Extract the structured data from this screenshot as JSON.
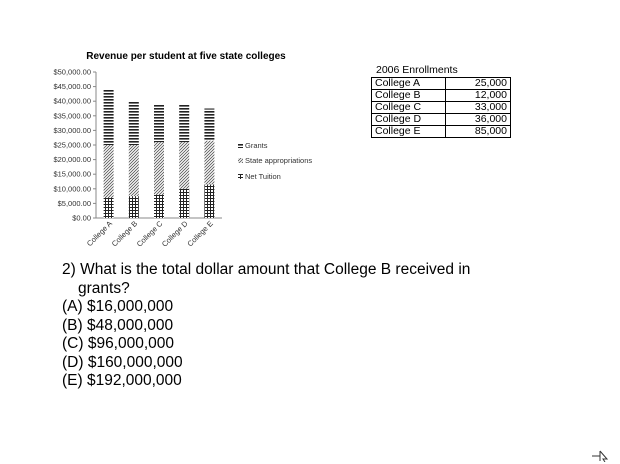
{
  "chart_data": {
    "type": "bar",
    "stacked": true,
    "title": "Revenue per student at five state colleges",
    "categories": [
      "College A",
      "College B",
      "College C",
      "College D",
      "College E"
    ],
    "series": [
      {
        "name": "Net Tuition",
        "pattern": "grid",
        "values": [
          7000,
          7500,
          8000,
          10000,
          11500
        ]
      },
      {
        "name": "State appropriations",
        "pattern": "diagonal",
        "values": [
          18000,
          17500,
          18000,
          16000,
          15000
        ]
      },
      {
        "name": "Grants",
        "pattern": "horizontal",
        "values": [
          19000,
          15000,
          13000,
          13000,
          11000
        ]
      }
    ],
    "ylim": [
      0,
      50000
    ],
    "yticks": [
      "$0.00",
      "$5,000.00",
      "$10,000.00",
      "$15,000.00",
      "$20,000.00",
      "$25,000.00",
      "$30,000.00",
      "$35,000.00",
      "$40,000.00",
      "$45,000.00",
      "$50,000.00"
    ],
    "legend": [
      "Grants",
      "State appropriations",
      "Net Tuition"
    ],
    "legend_position": "right",
    "grid": false
  },
  "table": {
    "title": "2006 Enrollments",
    "rows": [
      {
        "name": "College A",
        "value": "25,000"
      },
      {
        "name": "College B",
        "value": "12,000"
      },
      {
        "name": "College C",
        "value": "33,000"
      },
      {
        "name": "College D",
        "value": "36,000"
      },
      {
        "name": "College E",
        "value": "85,000"
      }
    ]
  },
  "question": {
    "line1": "2) What is the total dollar amount that College B received in",
    "line2": "grants?",
    "choices": [
      "(A) $16,000,000",
      "(B) $48,000,000",
      "(C) $96,000,000",
      "(D) $160,000,000",
      "(E) $192,000,000"
    ]
  }
}
